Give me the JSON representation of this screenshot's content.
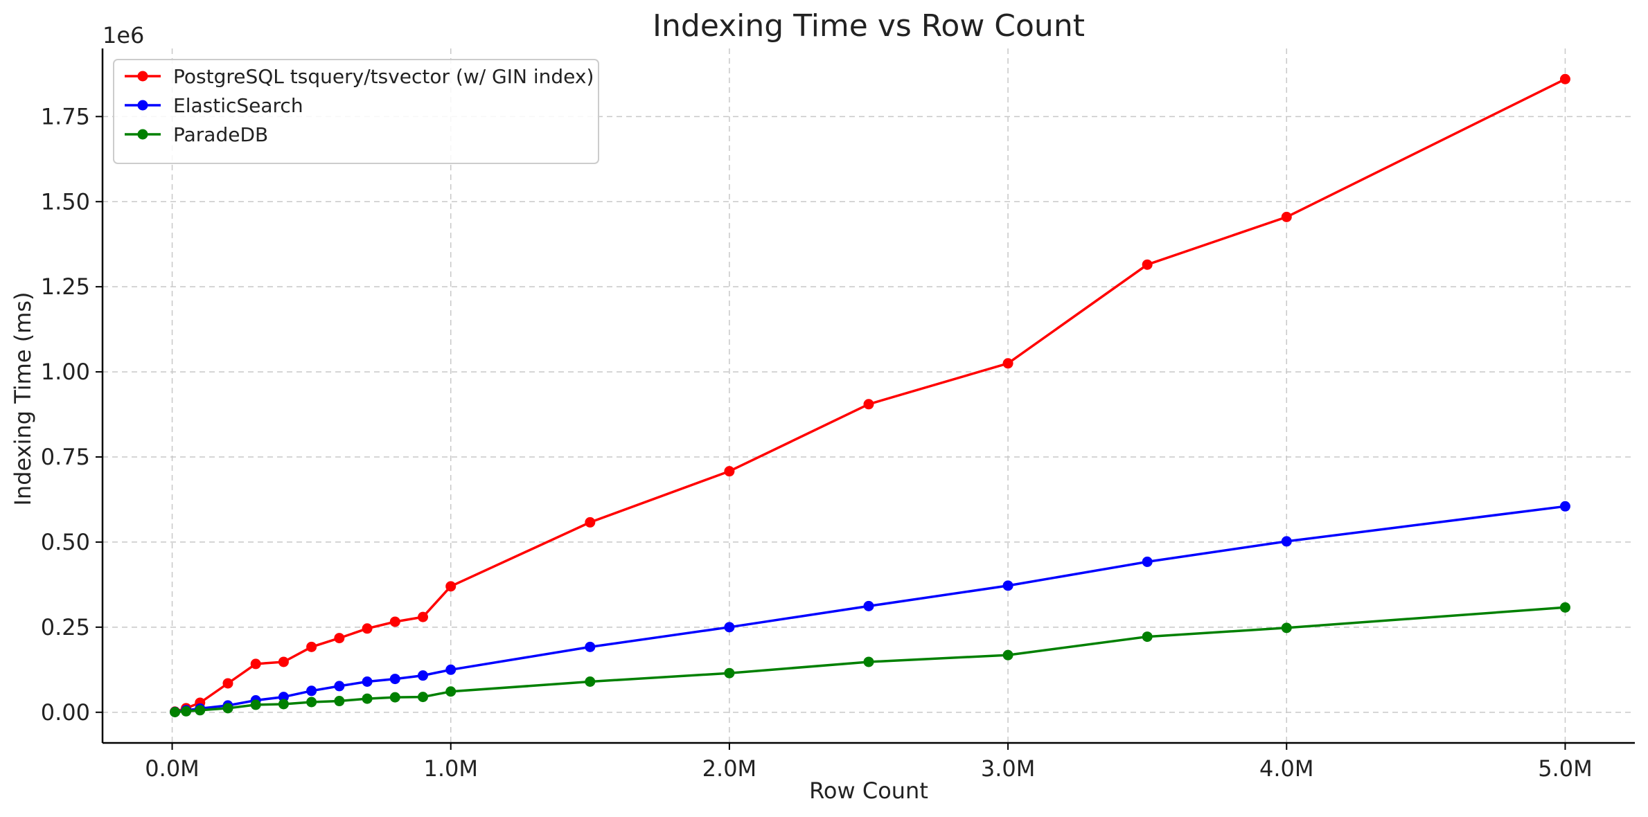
{
  "chart_data": {
    "type": "line",
    "title": "Indexing Time vs Row Count",
    "xlabel": "Row Count",
    "ylabel": "Indexing Time (ms)",
    "y_offset_label": "1e6",
    "xlim": [
      -250000,
      5250000
    ],
    "ylim": [
      -90000,
      1950000
    ],
    "x_ticks": [
      0,
      1000000,
      2000000,
      3000000,
      4000000,
      5000000
    ],
    "x_tick_labels": [
      "0.0M",
      "1.0M",
      "2.0M",
      "3.0M",
      "4.0M",
      "5.0M"
    ],
    "y_ticks": [
      0,
      250000,
      500000,
      750000,
      1000000,
      1250000,
      1500000,
      1750000
    ],
    "y_tick_labels": [
      "0.00",
      "0.25",
      "0.50",
      "0.75",
      "1.00",
      "1.25",
      "1.50",
      "1.75"
    ],
    "grid": true,
    "legend_position": "top-left",
    "x": [
      10000,
      50000,
      100000,
      200000,
      300000,
      400000,
      500000,
      600000,
      700000,
      800000,
      900000,
      1000000,
      1500000,
      2000000,
      2500000,
      3000000,
      3500000,
      4000000,
      5000000
    ],
    "series": [
      {
        "name": "PostgreSQL tsquery/tsvector (w/ GIN index)",
        "color": "#ff0000",
        "values": [
          2000,
          12000,
          28000,
          85000,
          142000,
          148000,
          192000,
          218000,
          246000,
          266000,
          280000,
          370000,
          558000,
          708000,
          905000,
          1025000,
          1315000,
          1455000,
          1860000
        ]
      },
      {
        "name": "ElasticSearch",
        "color": "#0000ff",
        "values": [
          1000,
          6000,
          11000,
          20000,
          35000,
          45000,
          63000,
          77000,
          90000,
          98000,
          108000,
          125000,
          192000,
          250000,
          312000,
          372000,
          442000,
          502000,
          605000
        ]
      },
      {
        "name": "ParadeDB",
        "color": "#008000",
        "values": [
          500,
          3000,
          6000,
          12000,
          22000,
          24000,
          30000,
          33000,
          40000,
          44000,
          45000,
          61000,
          90000,
          115000,
          148000,
          168000,
          222000,
          248000,
          308000
        ]
      }
    ]
  }
}
